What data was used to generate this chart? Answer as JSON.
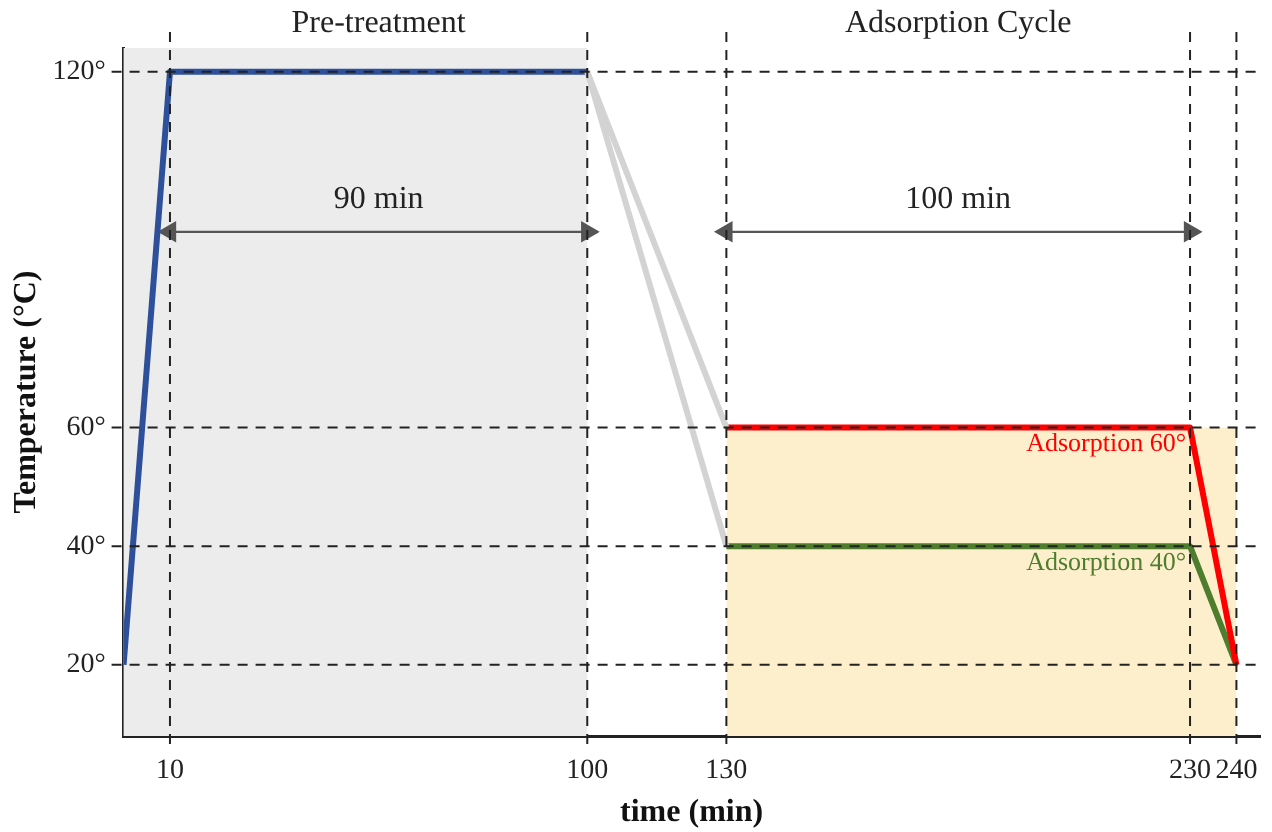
{
  "chart_data": {
    "type": "line",
    "xlabel": "time (min)",
    "ylabel": "Temperature (°C)",
    "xlim": [
      0,
      245
    ],
    "ylim": [
      8,
      124
    ],
    "xticks": [
      10,
      100,
      130,
      230,
      240
    ],
    "yticks": [
      {
        "value": 20,
        "label": "20°"
      },
      {
        "value": 40,
        "label": "40°"
      },
      {
        "value": 60,
        "label": "60°"
      },
      {
        "value": 120,
        "label": "120°"
      }
    ],
    "grid": true,
    "legend": false,
    "line_style": "solid",
    "marker": "none",
    "bands": [
      {
        "axis": "x",
        "from": 0,
        "to": 100,
        "color": "#ececec"
      }
    ],
    "series": [
      {
        "type": "area",
        "color": "#fdefcc",
        "x": [
          130,
          240
        ],
        "values": [
          60,
          60
        ]
      },
      {
        "color": "#d3d3d3",
        "x": [
          100,
          130
        ],
        "values": [
          120,
          60
        ]
      },
      {
        "color": "#d3d3d3",
        "x": [
          100,
          130
        ],
        "values": [
          120,
          40
        ]
      },
      {
        "color": "#2e4f9a",
        "x": [
          0,
          10,
          100
        ],
        "values": [
          20,
          120,
          120
        ]
      },
      {
        "name": "Adsorption 60°",
        "color": "#ff0000",
        "x": [
          130,
          230,
          240
        ],
        "values": [
          60,
          60,
          20
        ]
      },
      {
        "name": "Adsorption 40°",
        "color": "#4e7d2e",
        "x": [
          130,
          230,
          240
        ],
        "values": [
          40,
          40,
          20
        ]
      },
      {
        "name": "90 min",
        "color": "#555555",
        "marker": "triangle",
        "x": [
          10,
          100
        ],
        "values": [
          93,
          93
        ]
      },
      {
        "name": "100 min",
        "color": "#555555",
        "marker": "triangle",
        "x": [
          130,
          230
        ],
        "values": [
          93,
          93
        ]
      }
    ],
    "annotations": [
      "Pre-treatment",
      "Adsorption Cycle"
    ]
  }
}
